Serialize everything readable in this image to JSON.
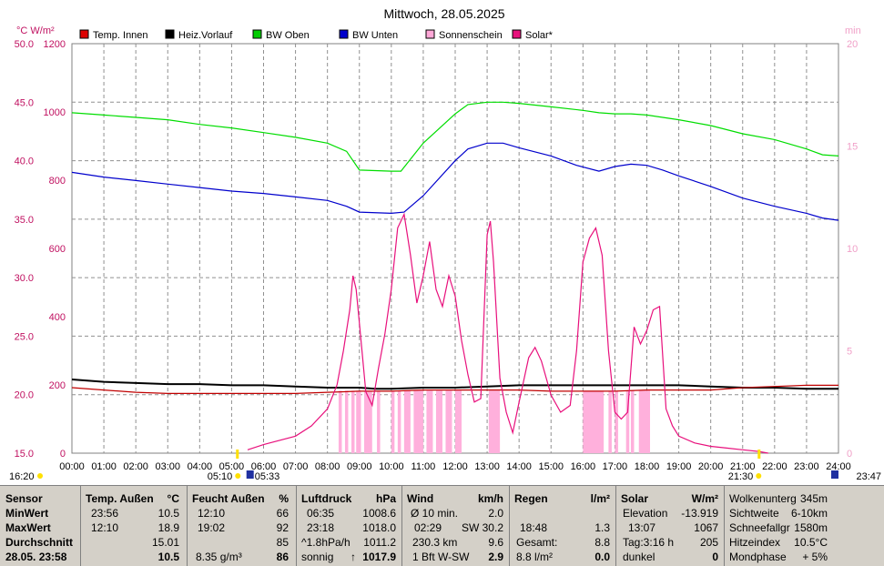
{
  "chart_data": {
    "type": "line",
    "title": "Mittwoch, 28.05.2025",
    "left_axis_units": "°C  W/m²",
    "right_axis_units": "min",
    "temp_ticks": [
      "50.0",
      "45.0",
      "40.0",
      "35.0",
      "30.0",
      "25.0",
      "20.0",
      "15.0"
    ],
    "solar_ticks": [
      "1200",
      "1000",
      "800",
      "600",
      "400",
      "200",
      "0"
    ],
    "min_ticks": [
      "20",
      "15",
      "10",
      "5",
      "0"
    ],
    "x_ticks": [
      "00:00",
      "01:00",
      "02:00",
      "03:00",
      "04:00",
      "05:00",
      "06:00",
      "07:00",
      "08:00",
      "09:00",
      "10:00",
      "11:00",
      "12:00",
      "13:00",
      "14:00",
      "15:00",
      "16:00",
      "17:00",
      "18:00",
      "19:00",
      "20:00",
      "21:00",
      "22:00",
      "23:00",
      "24:00"
    ],
    "legend": [
      {
        "name": "Temp. Innen",
        "color": "#dd0000"
      },
      {
        "name": "Heiz.Vorlauf",
        "color": "#000000"
      },
      {
        "name": "BW Oben",
        "color": "#00cc00"
      },
      {
        "name": "BW Unten",
        "color": "#0000cc"
      },
      {
        "name": "Sonnenschein",
        "color": "#ffa8d8"
      },
      {
        "name": "Solar*",
        "color": "#e8107c"
      }
    ],
    "series": [
      {
        "name": "BW Oben",
        "color": "#00dd00",
        "axis": "temp",
        "x": [
          0,
          1,
          2,
          3,
          4,
          5,
          6,
          7,
          8,
          8.6,
          9,
          10,
          10.3,
          11,
          12,
          12.4,
          13,
          13.5,
          14,
          15,
          16,
          16.5,
          17,
          17.5,
          18,
          18.5,
          19,
          20,
          21,
          22,
          23,
          23.5,
          24
        ],
        "y": [
          44.1,
          43.9,
          43.7,
          43.5,
          43.1,
          42.8,
          42.4,
          42.0,
          41.5,
          40.8,
          39.2,
          39.1,
          39.1,
          41.5,
          44.0,
          44.8,
          45.0,
          45.0,
          44.9,
          44.6,
          44.3,
          44.1,
          44.0,
          44.0,
          43.9,
          43.7,
          43.5,
          43.0,
          42.3,
          41.8,
          41.0,
          40.5,
          40.4
        ]
      },
      {
        "name": "BW Unten",
        "color": "#0000cc",
        "axis": "temp",
        "x": [
          0,
          1,
          2,
          3,
          4,
          5,
          6,
          7,
          8,
          8.6,
          9,
          10,
          10.4,
          11,
          12,
          12.4,
          13,
          13.5,
          14,
          15,
          15.8,
          16.5,
          17,
          17.5,
          18,
          18.5,
          19,
          20,
          21,
          22,
          23,
          23.5,
          24
        ],
        "y": [
          39.0,
          38.6,
          38.3,
          38.0,
          37.7,
          37.4,
          37.2,
          36.9,
          36.6,
          36.1,
          35.6,
          35.5,
          35.6,
          37.0,
          40.0,
          41.0,
          41.5,
          41.5,
          41.1,
          40.4,
          39.6,
          39.1,
          39.5,
          39.7,
          39.6,
          39.2,
          38.7,
          37.8,
          36.8,
          36.1,
          35.5,
          35.1,
          34.9
        ]
      },
      {
        "name": "Heiz.Vorlauf",
        "color": "#000000",
        "axis": "temp",
        "x": [
          0,
          1,
          2,
          3,
          4,
          5,
          6,
          7,
          8,
          9,
          9.5,
          10,
          11,
          12,
          13,
          14,
          15,
          16,
          17,
          18,
          19,
          20,
          21,
          22,
          23,
          24
        ],
        "y": [
          21.3,
          21.1,
          21.0,
          20.9,
          20.9,
          20.8,
          20.8,
          20.7,
          20.6,
          20.6,
          20.5,
          20.5,
          20.6,
          20.6,
          20.7,
          20.8,
          20.8,
          20.8,
          20.8,
          20.8,
          20.8,
          20.7,
          20.6,
          20.6,
          20.5,
          20.5
        ]
      },
      {
        "name": "Temp. Innen",
        "color": "#c00000",
        "axis": "temp",
        "x": [
          0,
          1,
          2,
          3,
          4,
          5,
          6,
          7,
          8,
          9,
          10,
          11,
          12,
          13,
          14,
          15,
          16,
          17,
          18,
          19,
          20,
          21,
          22,
          23,
          24
        ],
        "y": [
          20.6,
          20.4,
          20.2,
          20.1,
          20.1,
          20.1,
          20.1,
          20.1,
          20.2,
          20.3,
          20.3,
          20.4,
          20.4,
          20.4,
          20.4,
          20.3,
          20.3,
          20.3,
          20.4,
          20.4,
          20.4,
          20.6,
          20.7,
          20.8,
          20.8
        ]
      },
      {
        "name": "Solar*",
        "color": "#e8107c",
        "axis": "solar",
        "x": [
          5.5,
          6,
          7,
          7.5,
          8,
          8.3,
          8.5,
          8.7,
          8.8,
          8.9,
          9.0,
          9.2,
          9.4,
          9.6,
          9.8,
          10.0,
          10.2,
          10.4,
          10.6,
          10.8,
          11.0,
          11.2,
          11.4,
          11.6,
          11.8,
          12.0,
          12.2,
          12.4,
          12.6,
          12.8,
          13.0,
          13.1,
          13.2,
          13.4,
          13.6,
          13.8,
          14.0,
          14.3,
          14.5,
          14.7,
          15.0,
          15.3,
          15.6,
          15.8,
          16.0,
          16.2,
          16.4,
          16.6,
          16.8,
          17.0,
          17.2,
          17.4,
          17.6,
          17.8,
          18.0,
          18.2,
          18.4,
          18.6,
          18.8,
          19.0,
          19.5,
          20.0,
          20.5,
          21.0,
          21.5,
          21.8
        ],
        "y": [
          10,
          25,
          50,
          80,
          130,
          200,
          300,
          420,
          520,
          480,
          380,
          180,
          140,
          250,
          350,
          480,
          660,
          700,
          580,
          440,
          520,
          620,
          480,
          430,
          520,
          460,
          330,
          230,
          150,
          160,
          640,
          680,
          560,
          220,
          120,
          60,
          150,
          280,
          310,
          270,
          170,
          120,
          140,
          300,
          560,
          630,
          660,
          580,
          300,
          120,
          100,
          120,
          370,
          320,
          360,
          420,
          430,
          130,
          80,
          50,
          30,
          20,
          15,
          10,
          5,
          0
        ]
      }
    ],
    "sunshine_hours": [
      [
        8.35,
        8.45
      ],
      [
        8.55,
        8.65
      ],
      [
        8.75,
        8.85
      ],
      [
        8.9,
        9.05
      ],
      [
        9.15,
        9.4
      ],
      [
        9.55,
        9.65
      ],
      [
        10.0,
        10.1
      ],
      [
        10.2,
        10.3
      ],
      [
        10.4,
        10.6
      ],
      [
        10.7,
        11.0
      ],
      [
        11.1,
        11.3
      ],
      [
        11.4,
        11.6
      ],
      [
        11.7,
        11.9
      ],
      [
        12.0,
        12.2
      ],
      [
        13.05,
        13.4
      ],
      [
        16.0,
        16.65
      ],
      [
        16.8,
        16.9
      ],
      [
        17.0,
        17.1
      ],
      [
        17.35,
        17.45
      ],
      [
        17.5,
        17.6
      ],
      [
        17.75,
        18.1
      ]
    ],
    "markers": {
      "sunrise": "05:10",
      "sunrise2": "05:33",
      "sunset": "21:30",
      "moonrise": "16:20",
      "moonset": "23:47"
    }
  },
  "table": {
    "sensor": {
      "header": "Sensor",
      "minwert": "MinWert",
      "maxwert": "MaxWert",
      "durchschnitt": "Durchschnitt",
      "date": "28.05. 23:58"
    },
    "temp": {
      "header": "Temp. Außen",
      "unit": "°C",
      "min_time": "23:56",
      "min_val": "10.5",
      "max_time": "12:10",
      "max_val": "18.9",
      "avg": "15.01",
      "cur": "10.5"
    },
    "feucht": {
      "header": "Feucht Außen",
      "unit": "%",
      "min_time": "12:10",
      "min_val": "66",
      "max_time": "19:02",
      "max_val": "92",
      "avg": "85",
      "abs": "8.35 g/m³",
      "cur": "86"
    },
    "druck": {
      "header": "Luftdruck",
      "unit": "hPa",
      "min_time": "06:35",
      "min_val": "1008.6",
      "max_time": "23:18",
      "max_val": "1018.0",
      "trend_label": "^1.8hPa/h",
      "trend_val": "1011.2",
      "status": "sonnig",
      "cur_arrow": "↑",
      "cur": "1017.9"
    },
    "wind": {
      "header": "Wind",
      "unit": "km/h",
      "r1_label": "Ø 10 min.",
      "r1_val": "2.0",
      "r2_label": "02:29",
      "r2_val": "SW 30.2",
      "r3_label": "230.3 km",
      "r3_val": "9.6",
      "r4_label": "1 Bft W-SW",
      "r4_val": "2.9"
    },
    "regen": {
      "header": "Regen",
      "unit": "l/m²",
      "r2_label": "18:48",
      "r2_val": "1.3",
      "r3_label": "Gesamt:",
      "r3_val": "8.8",
      "r4_label": "8.8 l/m²",
      "r4_val": "0.0"
    },
    "solar": {
      "header": "Solar",
      "unit": "W/m²",
      "r1_label": "Elevation",
      "r1_val": "-13.919",
      "r2_label": "13:07",
      "r2_val": "1067",
      "r3_label": "Tag:3:16 h",
      "r3_val": "205",
      "r4_label": "dunkel",
      "r4_val": "0"
    },
    "extra": {
      "r0_label": "Wolkenunterg",
      "r0_val": "345m",
      "r1_label": "Sichtweite",
      "r1_val": "6-10km",
      "r2_label": "Schneefallgr",
      "r2_val": "1580m",
      "r3_label": "Hitzeindex",
      "r3_val": "10.5°C",
      "r4_label": "Mondphase",
      "r4_val": "+ 5%"
    }
  }
}
